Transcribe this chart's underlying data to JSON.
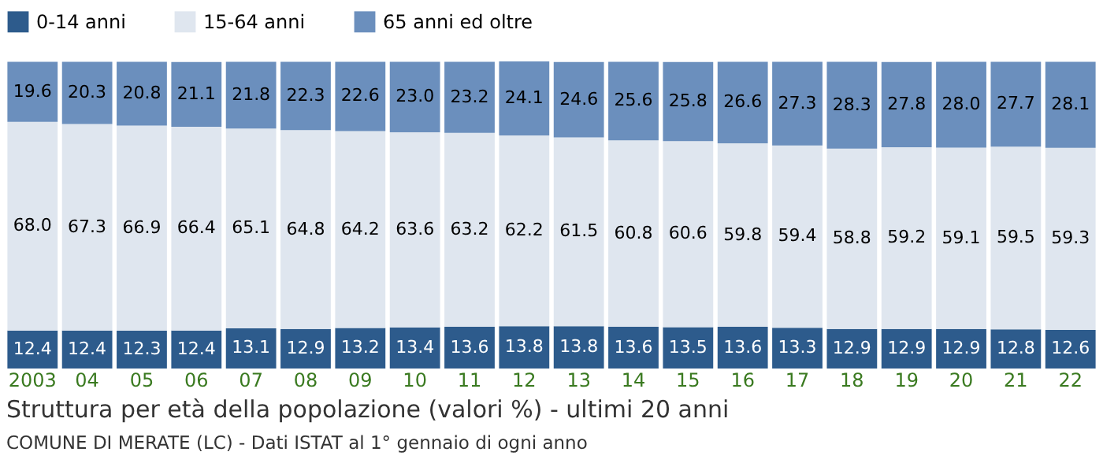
{
  "chart_data": {
    "type": "bar",
    "stacked": true,
    "legend": "top",
    "grid": false,
    "title": "Struttura per età della popolazione (valori %) - ultimi 20 anni",
    "annotations": [
      "COMUNE DI MERATE (LC) - Dati ISTAT al 1° gennaio di ogni anno"
    ],
    "categories": [
      "2003",
      "04",
      "05",
      "06",
      "07",
      "08",
      "09",
      "10",
      "11",
      "12",
      "13",
      "14",
      "15",
      "16",
      "17",
      "18",
      "19",
      "20",
      "21",
      "22"
    ],
    "series": [
      {
        "name": "0-14 anni",
        "color": "#2d5b8c",
        "values": [
          12.4,
          12.4,
          12.3,
          12.4,
          13.1,
          12.9,
          13.2,
          13.4,
          13.6,
          13.8,
          13.8,
          13.6,
          13.5,
          13.6,
          13.3,
          12.9,
          12.9,
          12.9,
          12.8,
          12.6
        ],
        "value_labels": [
          "12.4",
          "12.4",
          "12.3",
          "12.4",
          "13.1",
          "12.9",
          "13.2",
          "13.4",
          "13.6",
          "13.8",
          "13.8",
          "13.6",
          "13.5",
          "13.6",
          "13.3",
          "12.9",
          "12.9",
          "12.9",
          "12.8",
          "12.6"
        ]
      },
      {
        "name": "15-64 anni",
        "color": "#dfe6ef",
        "values": [
          68.0,
          67.3,
          66.9,
          66.4,
          65.1,
          64.8,
          64.2,
          63.6,
          63.2,
          62.2,
          61.5,
          60.8,
          60.6,
          59.8,
          59.4,
          58.8,
          59.2,
          59.1,
          59.5,
          59.3
        ],
        "value_labels": [
          "68.0",
          "67.3",
          "66.9",
          "66.4",
          "65.1",
          "64.8",
          "64.2",
          "63.6",
          "63.2",
          "62.2",
          "61.5",
          "60.8",
          "60.6",
          "59.8",
          "59.4",
          "58.8",
          "59.2",
          "59.1",
          "59.5",
          "59.3"
        ]
      },
      {
        "name": "65 anni ed oltre",
        "color": "#6b8fbd",
        "values": [
          19.6,
          20.3,
          20.8,
          21.1,
          21.8,
          22.3,
          22.6,
          23.0,
          23.2,
          24.1,
          24.6,
          25.6,
          25.8,
          26.6,
          27.3,
          28.3,
          27.8,
          28.0,
          27.7,
          28.1
        ],
        "value_labels": [
          "19.6",
          "20.3",
          "20.8",
          "21.1",
          "21.8",
          "22.3",
          "22.6",
          "23.0",
          "23.2",
          "24.1",
          "24.6",
          "25.6",
          "25.8",
          "26.6",
          "27.3",
          "28.3",
          "27.8",
          "28.0",
          "27.7",
          "28.1"
        ]
      }
    ]
  }
}
